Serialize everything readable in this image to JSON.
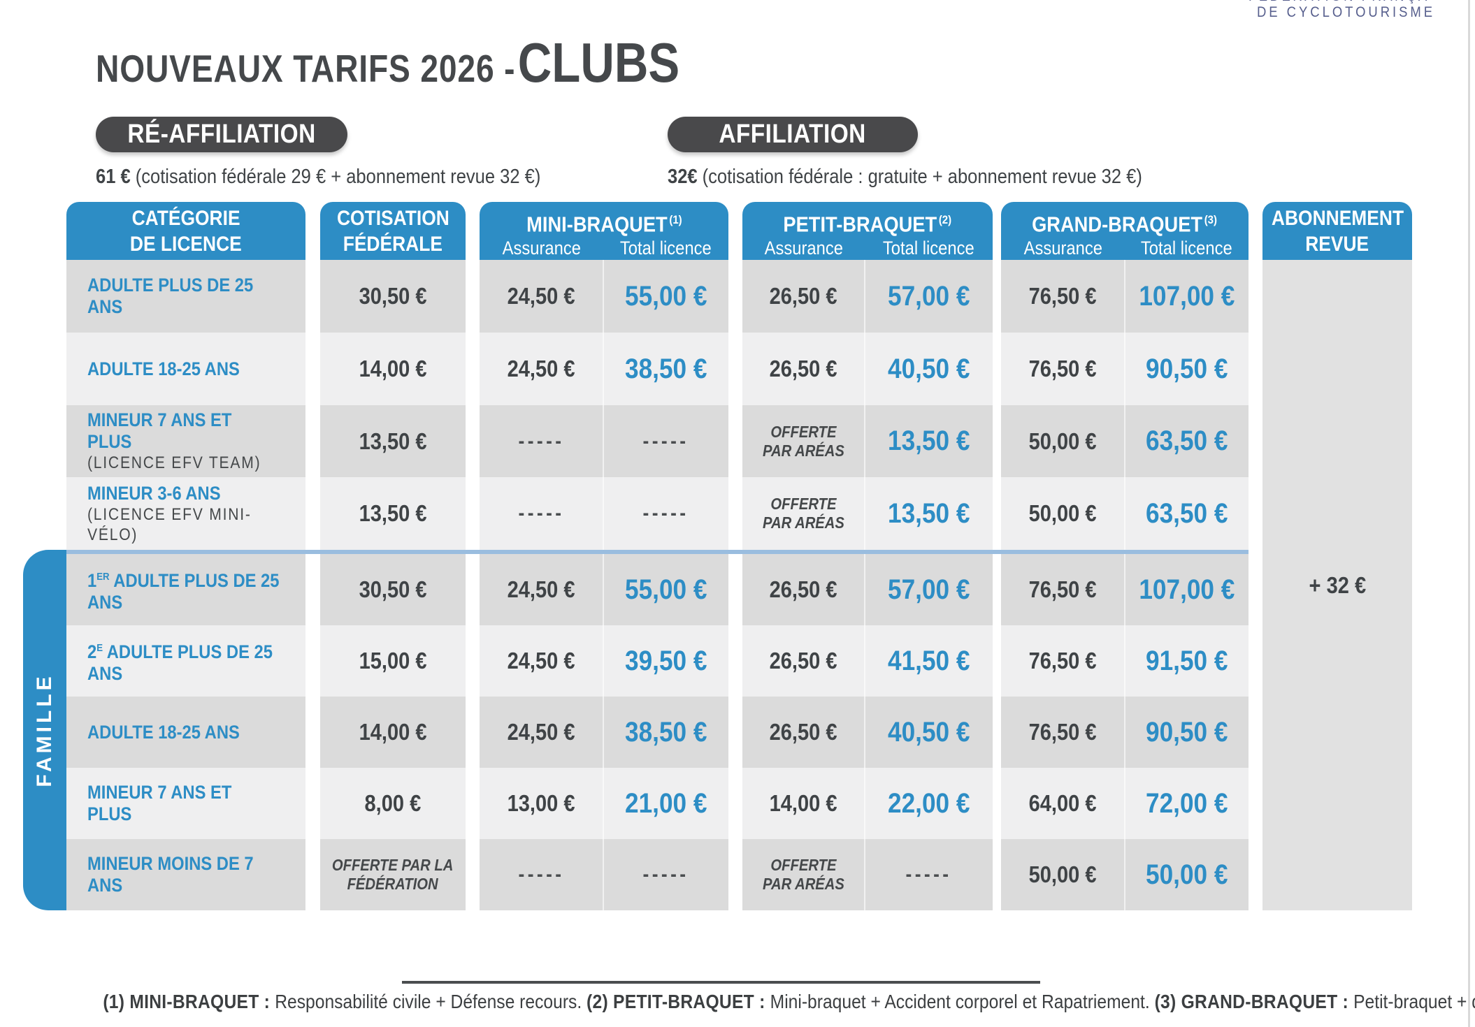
{
  "logo": {
    "line1": "FÉDÉRATION FRANÇAISE",
    "line2": "DE CYCLOTOURISME"
  },
  "title": {
    "prefix": "NOUVEAUX TARIFS 2026 - ",
    "emphasis": "CLUBS"
  },
  "offers": [
    {
      "pill": "RÉ-AFFILIATION",
      "price": "61 €",
      "detail": " (cotisation fédérale 29 € + abonnement revue 32 €)"
    },
    {
      "pill": "AFFILIATION",
      "price": "32€",
      "detail": " (cotisation fédérale : gratuite + abonnement revue 32 €)"
    }
  ],
  "table": {
    "columns": {
      "category": {
        "title_line1": "CATÉGORIE",
        "title_line2": "DE LICENCE"
      },
      "federal": {
        "title_line1": "COTISATION",
        "title_line2": "FÉDÉRALE"
      },
      "mini": {
        "title": "MINI-BRAQUET",
        "sup": "(1)",
        "sub1": "Assurance",
        "sub2": "Total licence"
      },
      "petit": {
        "title": "PETIT-BRAQUET",
        "sup": "(2)",
        "sub1": "Assurance",
        "sub2": "Total licence"
      },
      "grand": {
        "title": "GRAND-BRAQUET",
        "sup": "(3)",
        "sub1": "Assurance",
        "sub2": "Total licence"
      },
      "revue": {
        "title_line1": "ABONNEMENT",
        "title_line2": "REVUE",
        "value": "+ 32 €"
      }
    },
    "famille_label": "FAMILLE",
    "rows": [
      {
        "label": "ADULTE PLUS DE 25 ANS",
        "famille": false,
        "cotisation": "30,50 €",
        "mini_assurance": "24,50 €",
        "mini_total": "55,00 €",
        "petit_assurance": "26,50 €",
        "petit_total": "57,00 €",
        "grand_assurance": "76,50 €",
        "grand_total": "107,00 €"
      },
      {
        "label": "ADULTE 18-25 ANS",
        "famille": false,
        "cotisation": "14,00 €",
        "mini_assurance": "24,50 €",
        "mini_total": "38,50 €",
        "petit_assurance": "26,50 €",
        "petit_total": "40,50 €",
        "grand_assurance": "76,50 €",
        "grand_total": "90,50 €"
      },
      {
        "label": "MINEUR 7 ANS ET PLUS",
        "sublabel": "(LICENCE EFV TEAM)",
        "famille": false,
        "cotisation": "13,50 €",
        "mini_assurance": "-----",
        "mini_total": "-----",
        "petit_assurance": "OFFERTE\nPAR ARÉAS",
        "petit_total": "13,50 €",
        "grand_assurance": "50,00 €",
        "grand_total": "63,50 €"
      },
      {
        "label": "MINEUR 3-6 ANS",
        "sublabel": "(LICENCE EFV MINI-VÉLO)",
        "famille": false,
        "cotisation": "13,50 €",
        "mini_assurance": "-----",
        "mini_total": "-----",
        "petit_assurance": "OFFERTE\nPAR ARÉAS",
        "petit_total": "13,50 €",
        "grand_assurance": "50,00 €",
        "grand_total": "63,50 €"
      },
      {
        "label_num": "1",
        "label_sup": "ER",
        "label": " ADULTE PLUS DE 25 ANS",
        "famille": true,
        "cotisation": "30,50 €",
        "mini_assurance": "24,50 €",
        "mini_total": "55,00 €",
        "petit_assurance": "26,50 €",
        "petit_total": "57,00 €",
        "grand_assurance": "76,50 €",
        "grand_total": "107,00 €"
      },
      {
        "label_num": "2",
        "label_sup": "E",
        "label": " ADULTE PLUS DE 25 ANS",
        "famille": true,
        "cotisation": "15,00 €",
        "mini_assurance": "24,50 €",
        "mini_total": "39,50 €",
        "petit_assurance": "26,50 €",
        "petit_total": "41,50 €",
        "grand_assurance": "76,50 €",
        "grand_total": "91,50 €"
      },
      {
        "label": "ADULTE 18-25 ANS",
        "famille": true,
        "cotisation": "14,00 €",
        "mini_assurance": "24,50 €",
        "mini_total": "38,50 €",
        "petit_assurance": "26,50 €",
        "petit_total": "40,50 €",
        "grand_assurance": "76,50 €",
        "grand_total": "90,50 €"
      },
      {
        "label": "MINEUR 7 ANS ET PLUS",
        "famille": true,
        "cotisation": "8,00 €",
        "mini_assurance": "13,00 €",
        "mini_total": "21,00 €",
        "petit_assurance": "14,00 €",
        "petit_total": "22,00 €",
        "grand_assurance": "64,00 €",
        "grand_total": "72,00 €"
      },
      {
        "label": "MINEUR MOINS DE 7 ANS",
        "famille": true,
        "cotisation": "OFFERTE PAR LA\nFÉDÉRATION",
        "mini_assurance": "-----",
        "mini_total": "-----",
        "petit_assurance": "OFFERTE\nPAR ARÉAS",
        "petit_total": "-----",
        "grand_assurance": "50,00 €",
        "grand_total": "50,00 €"
      }
    ]
  },
  "footnote": {
    "segments": [
      {
        "text": "(1) MINI-BRAQUET : ",
        "bold": true
      },
      {
        "text": "Responsabilité civile + Défense recours. ",
        "bold": false
      },
      {
        "text": "(2) PETIT-BRAQUET : ",
        "bold": true
      },
      {
        "text": "Mini-braquet + Accident corporel et Rapatriement. ",
        "bold": false
      },
      {
        "text": "(3) GRAND-BRAQUET : ",
        "bold": true
      },
      {
        "text": "Petit-braquet + dommage au vélo.",
        "bold": false
      }
    ]
  },
  "colors": {
    "accent_blue": "#2d8dc5",
    "divider_blue": "#9abddf",
    "row_dark": "#dbdbdb",
    "row_light": "#efeff0",
    "revue_gray": "#e1e1e1",
    "pill_gray": "#49494b",
    "text_dark": "#3f4346",
    "logo_slate": "#575f8d"
  }
}
